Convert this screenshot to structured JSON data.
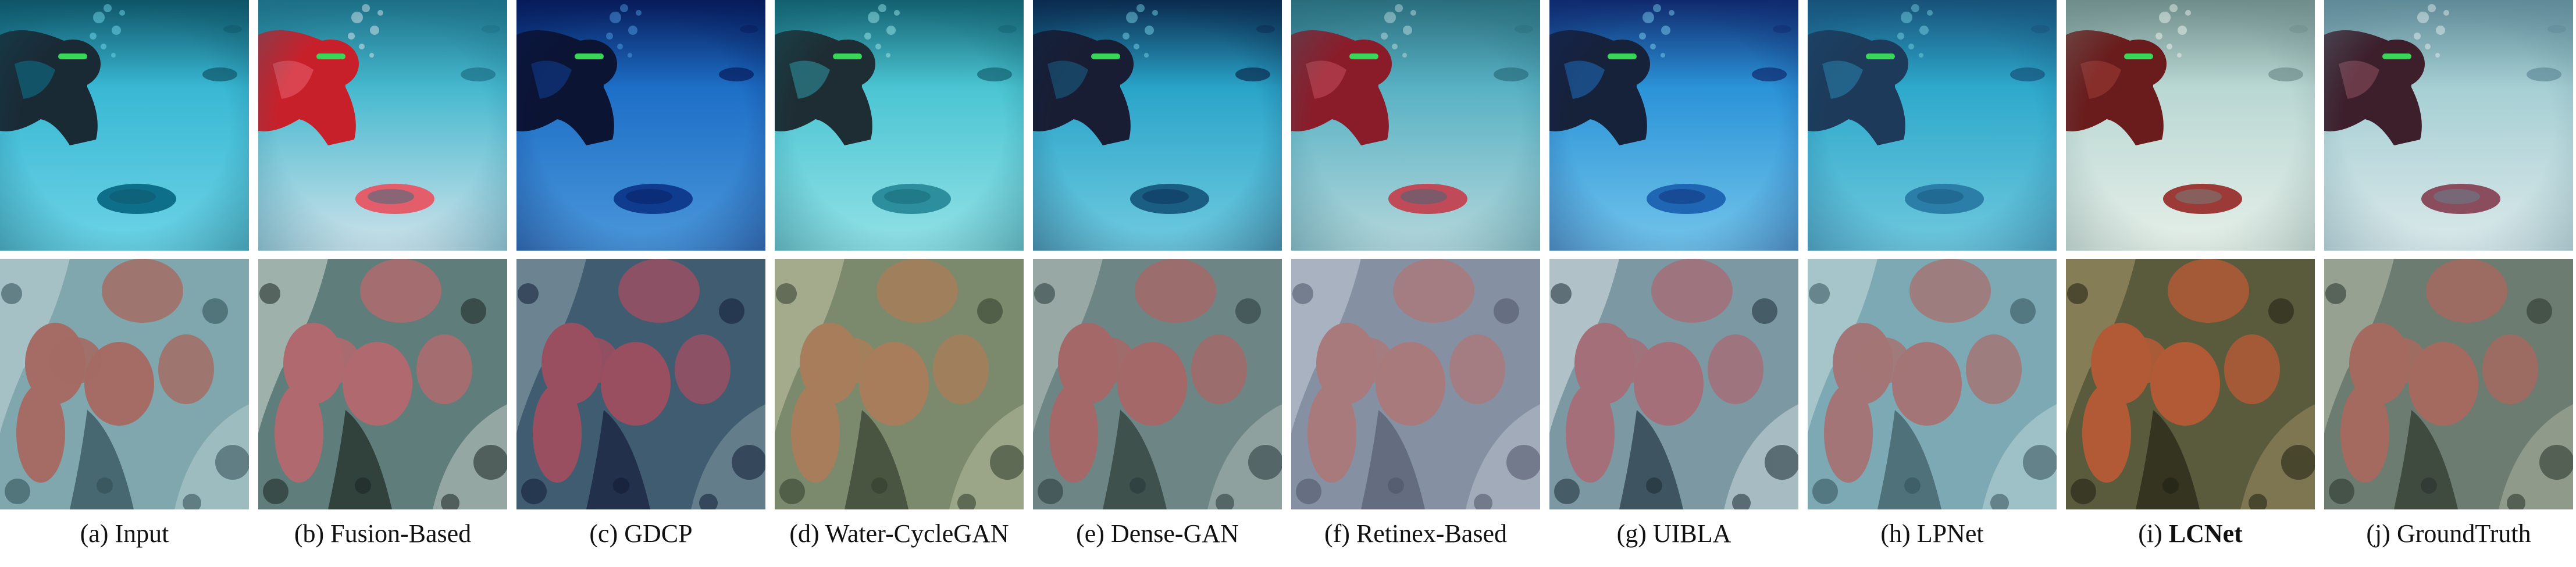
{
  "figure": {
    "columns": [
      {
        "prefix": "(a)",
        "method": "Input",
        "bold": false,
        "top_palette": {
          "base": "#39b8d4",
          "light": "#6dd3e6",
          "dark": "#0f5568",
          "diver": "#1a2a35",
          "accent": "#0e6f8a"
        },
        "bottom_palette": {
          "base": "#7fa7ad",
          "light": "#c4d7d8",
          "dark": "#2e4a52",
          "coral": "#a46c64",
          "shadow": "#3a5962"
        }
      },
      {
        "prefix": "(b)",
        "method": "Fusion-Based",
        "bold": false,
        "top_palette": {
          "base": "#46b9cf",
          "light": "#cfe2ea",
          "dark": "#1c6f86",
          "diver": "#c8202a",
          "accent": "#e45d6b"
        },
        "bottom_palette": {
          "base": "#5f7d7a",
          "light": "#d4dcd3",
          "dark": "#1a2522",
          "coral": "#b06a6f",
          "shadow": "#25322d"
        }
      },
      {
        "prefix": "(c)",
        "method": "GDCP",
        "bold": false,
        "top_palette": {
          "base": "#1d6fc7",
          "light": "#4b97da",
          "dark": "#071b5a",
          "diver": "#0b1433",
          "accent": "#0f3c8e"
        },
        "bottom_palette": {
          "base": "#405c70",
          "light": "#8fa6ae",
          "dark": "#101b35",
          "coral": "#9a4f61",
          "shadow": "#1a2642"
        }
      },
      {
        "prefix": "(d)",
        "method": "Water-CycleGAN",
        "bold": false,
        "top_palette": {
          "base": "#4bc5d3",
          "light": "#93e1e6",
          "dark": "#136170",
          "diver": "#1e2d33",
          "accent": "#2d8f9e"
        },
        "bottom_palette": {
          "base": "#7b8a6c",
          "light": "#c4c6a8",
          "dark": "#2f3a2b",
          "coral": "#a77d5b",
          "shadow": "#3d4736"
        }
      },
      {
        "prefix": "(e)",
        "method": "Dense-GAN",
        "bold": false,
        "top_palette": {
          "base": "#2aa4c9",
          "light": "#70cbe0",
          "dark": "#0a2b4f",
          "diver": "#181d33",
          "accent": "#1a5e84"
        },
        "bottom_palette": {
          "base": "#6d8685",
          "light": "#b9c4bf",
          "dark": "#26363a",
          "coral": "#a46868",
          "shadow": "#33433f"
        }
      },
      {
        "prefix": "(f)",
        "method": "Retinex-Based",
        "bold": false,
        "top_palette": {
          "base": "#58b2c4",
          "light": "#b5d7db",
          "dark": "#2a6e7e",
          "diver": "#8a1c2a",
          "accent": "#c04a58"
        },
        "bottom_palette": {
          "base": "#8590a3",
          "light": "#c6cdd8",
          "dark": "#4b5366",
          "coral": "#a97a7c",
          "shadow": "#5b6377"
        }
      },
      {
        "prefix": "(g)",
        "method": "UIBLA",
        "bold": false,
        "top_palette": {
          "base": "#2b93d8",
          "light": "#73c5ea",
          "dark": "#102a6e",
          "diver": "#16213a",
          "accent": "#1f67b4"
        },
        "bottom_palette": {
          "base": "#7b98a3",
          "light": "#dce6e8",
          "dark": "#1b2c35",
          "coral": "#a46f78",
          "shadow": "#2f4450"
        }
      },
      {
        "prefix": "(h)",
        "method": "LPNet",
        "bold": false,
        "top_palette": {
          "base": "#2ea9cc",
          "light": "#6fc8dd",
          "dark": "#17527a",
          "diver": "#1d3a5a",
          "accent": "#2a7ea8"
        },
        "bottom_palette": {
          "base": "#7ca9b3",
          "light": "#c7dcdf",
          "dark": "#33505a",
          "coral": "#a47576",
          "shadow": "#44636b"
        }
      },
      {
        "prefix": "(i)",
        "method": "LCNet",
        "bold": true,
        "top_palette": {
          "base": "#b9d7d3",
          "light": "#e6efe9",
          "dark": "#6f8e8b",
          "diver": "#6a1b1b",
          "accent": "#9b3a36"
        },
        "bottom_palette": {
          "base": "#5a5a3d",
          "light": "#a89a6b",
          "dark": "#1f1f12",
          "coral": "#b15a35",
          "shadow": "#2b2a1a"
        }
      },
      {
        "prefix": "(j)",
        "method": "GroundTruth",
        "bold": false,
        "top_palette": {
          "base": "#a6cfd4",
          "light": "#dbe9ea",
          "dark": "#5f8a97",
          "diver": "#3d1e2b",
          "accent": "#8a4d5d"
        },
        "bottom_palette": {
          "base": "#6d7c70",
          "light": "#b8bfae",
          "dark": "#263129",
          "coral": "#a46a5f",
          "shadow": "#343f35"
        }
      }
    ]
  }
}
